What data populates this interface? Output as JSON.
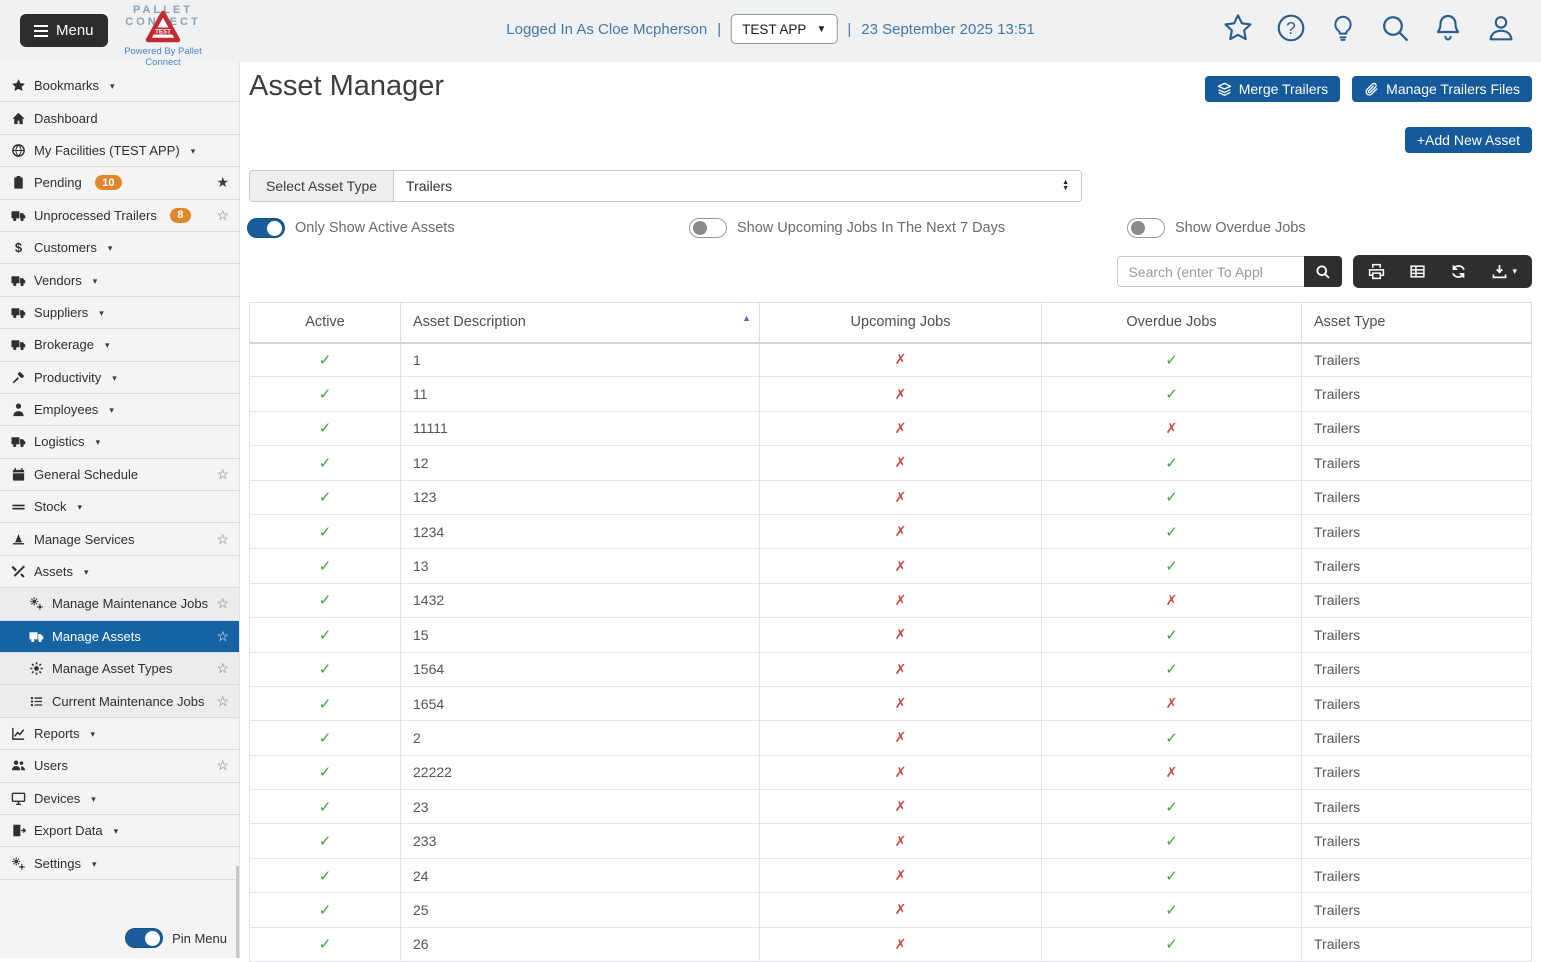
{
  "header": {
    "menu_label": "Menu",
    "logo_line1": "PALLET",
    "logo_line2": "CONNECT",
    "logo_badge": "TEST",
    "logo_tagline": "Powered By Pallet Connect",
    "logged_in_text": "Logged In As Cloe Mcpherson",
    "separator": "|",
    "app_select_value": "TEST APP",
    "datetime": "23 September 2025 13:51"
  },
  "sidebar": {
    "items": [
      {
        "label": "Bookmarks",
        "icon": "bookmark",
        "caret": true
      },
      {
        "label": "Dashboard",
        "icon": "dashboard"
      },
      {
        "label": "My Facilities  (TEST APP)",
        "icon": "facilities",
        "caret": true
      },
      {
        "label": "Pending",
        "icon": "pending",
        "badge": "10",
        "star": "filled"
      },
      {
        "label": "Unprocessed Trailers",
        "icon": "truck",
        "badge": "8",
        "star": "outline"
      },
      {
        "label": "Customers",
        "icon": "customers",
        "caret": true
      },
      {
        "label": "Vendors",
        "icon": "truck",
        "caret": true
      },
      {
        "label": "Suppliers",
        "icon": "truck",
        "caret": true
      },
      {
        "label": "Brokerage",
        "icon": "truck",
        "caret": true
      },
      {
        "label": "Productivity",
        "icon": "hammer",
        "caret": true
      },
      {
        "label": "Employees",
        "icon": "person",
        "caret": true
      },
      {
        "label": "Logistics",
        "icon": "truck",
        "caret": true
      },
      {
        "label": "General Schedule",
        "icon": "calendar",
        "star": "outline"
      },
      {
        "label": "Stock",
        "icon": "stock",
        "caret": true
      },
      {
        "label": "Manage Services",
        "icon": "services",
        "star": "outline"
      },
      {
        "label": "Assets",
        "icon": "tools",
        "caret": true
      },
      {
        "label": "Manage Maintenance Jobs",
        "icon": "gears",
        "star": "outline",
        "sub": true
      },
      {
        "label": "Manage Assets",
        "icon": "truck",
        "star": "outline",
        "sub": true,
        "selected": true
      },
      {
        "label": "Manage Asset Types",
        "icon": "gear",
        "star": "outline",
        "sub": true
      },
      {
        "label": "Current Maintenance Jobs",
        "icon": "list",
        "star": "outline",
        "sub": true
      },
      {
        "label": "Reports",
        "icon": "chart",
        "caret": true
      },
      {
        "label": "Users",
        "icon": "users",
        "star": "outline"
      },
      {
        "label": "Devices",
        "icon": "monitor",
        "caret": true
      },
      {
        "label": "Export Data",
        "icon": "export",
        "caret": true
      },
      {
        "label": "Settings",
        "icon": "gears",
        "caret": true
      }
    ],
    "pin_menu_label": "Pin Menu",
    "pin_menu_on": true
  },
  "main": {
    "title": "Asset Manager",
    "buttons": {
      "merge": "Merge Trailers",
      "manage_files": "Manage Trailers Files",
      "add_new": "+Add New Asset"
    },
    "asset_type": {
      "label": "Select Asset Type",
      "value": "Trailers"
    },
    "toggles": [
      {
        "label": "Only Show Active Assets",
        "on": true
      },
      {
        "label": "Show Upcoming Jobs In The Next 7 Days",
        "on": false
      },
      {
        "label": "Show Overdue Jobs",
        "on": false
      }
    ],
    "search": {
      "placeholder": "Search (enter To Appl"
    },
    "table": {
      "headers": [
        "Active",
        "Asset Description",
        "Upcoming Jobs",
        "Overdue Jobs",
        "Asset Type"
      ],
      "sorted_column": "Asset Description",
      "sort_direction": "asc",
      "rows": [
        {
          "active": true,
          "description": "1",
          "upcoming": false,
          "overdue": true,
          "type": "Trailers"
        },
        {
          "active": true,
          "description": "11",
          "upcoming": false,
          "overdue": true,
          "type": "Trailers"
        },
        {
          "active": true,
          "description": "11111",
          "upcoming": false,
          "overdue": false,
          "type": "Trailers"
        },
        {
          "active": true,
          "description": "12",
          "upcoming": false,
          "overdue": true,
          "type": "Trailers"
        },
        {
          "active": true,
          "description": "123",
          "upcoming": false,
          "overdue": true,
          "type": "Trailers"
        },
        {
          "active": true,
          "description": "1234",
          "upcoming": false,
          "overdue": true,
          "type": "Trailers"
        },
        {
          "active": true,
          "description": "13",
          "upcoming": false,
          "overdue": true,
          "type": "Trailers"
        },
        {
          "active": true,
          "description": "1432",
          "upcoming": false,
          "overdue": false,
          "type": "Trailers"
        },
        {
          "active": true,
          "description": "15",
          "upcoming": false,
          "overdue": true,
          "type": "Trailers"
        },
        {
          "active": true,
          "description": "1564",
          "upcoming": false,
          "overdue": true,
          "type": "Trailers"
        },
        {
          "active": true,
          "description": "1654",
          "upcoming": false,
          "overdue": false,
          "type": "Trailers"
        },
        {
          "active": true,
          "description": "2",
          "upcoming": false,
          "overdue": true,
          "type": "Trailers"
        },
        {
          "active": true,
          "description": "22222",
          "upcoming": false,
          "overdue": false,
          "type": "Trailers"
        },
        {
          "active": true,
          "description": "23",
          "upcoming": false,
          "overdue": true,
          "type": "Trailers"
        },
        {
          "active": true,
          "description": "233",
          "upcoming": false,
          "overdue": true,
          "type": "Trailers"
        },
        {
          "active": true,
          "description": "24",
          "upcoming": false,
          "overdue": true,
          "type": "Trailers"
        },
        {
          "active": true,
          "description": "25",
          "upcoming": false,
          "overdue": true,
          "type": "Trailers"
        },
        {
          "active": true,
          "description": "26",
          "upcoming": false,
          "overdue": true,
          "type": "Trailers"
        }
      ]
    }
  },
  "marks": {
    "check": "✓",
    "cross": "✗",
    "star_filled": "★",
    "star_outline": "☆",
    "caret_down": "▾",
    "sort_asc": "▲"
  },
  "icons": {
    "bookmark": "svg:star",
    "dashboard": "svg:home",
    "facilities": "svg:globe",
    "pending": "svg:clipboard",
    "truck": "svg:truck",
    "customers": "char:$",
    "hammer": "svg:hammer",
    "person": "svg:person",
    "calendar": "svg:calendar",
    "stock": "svg:pallet",
    "services": "svg:services",
    "tools": "svg:tools",
    "gears": "svg:gears",
    "gear": "svg:gear",
    "list": "svg:list",
    "chart": "svg:chart",
    "users": "svg:users",
    "monitor": "svg:monitor",
    "export": "svg:export"
  },
  "colors": {
    "accent_blue": "#155a9b",
    "sidebar_selected": "#1563a2",
    "badge_orange": "#e2862b",
    "check_green": "#3fa23f",
    "cross_red": "#ca4a44",
    "link_blue": "#4478a9",
    "toolbar_dark": "#2e2e2e",
    "logo_red": "#bf2b30"
  }
}
